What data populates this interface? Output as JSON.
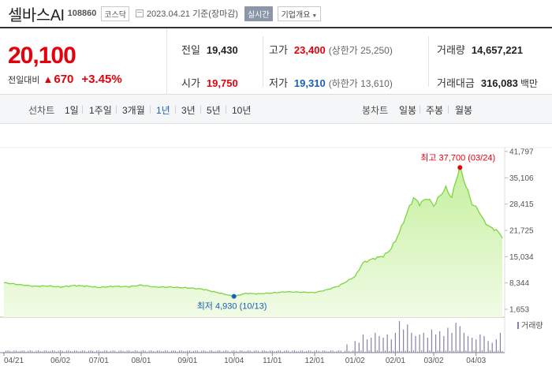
{
  "header": {
    "name": "셀바스AI",
    "code": "108860",
    "market": "코스닥",
    "date": "2023.04.21  기준(장마감)",
    "realtime": "실시간",
    "company_info": "기업개요"
  },
  "summary": {
    "price": "20,100",
    "change_label": "전일대비",
    "change": "670",
    "change_pct": "+3.45%",
    "prev_close_label": "전일",
    "prev_close": "19,430",
    "high_label": "고가",
    "high": "23,400",
    "upper_limit": "(상한가 25,250)",
    "volume_label": "거래량",
    "volume": "14,657,221",
    "open_label": "시가",
    "open": "19,750",
    "low_label": "저가",
    "low": "19,310",
    "lower_limit": "(하한가 13,610)",
    "amount_label": "거래대금",
    "amount": "316,083",
    "amount_unit": "백만"
  },
  "tabs": {
    "line_label": "선차트",
    "periods": [
      "1일",
      "1주일",
      "3개월",
      "1년",
      "3년",
      "5년",
      "10년"
    ],
    "active": "1년",
    "candle_label": "봉차트",
    "candles": [
      "일봉",
      "주봉",
      "월봉"
    ]
  },
  "chart_data": {
    "type": "area",
    "y_ticks": [
      "41,797",
      "35,106",
      "28,415",
      "21,725",
      "15,034",
      "8,344",
      "1,653"
    ],
    "y_tick_values": [
      41797,
      35106,
      28415,
      21725,
      15034,
      8344,
      1653
    ],
    "ylim": [
      1653,
      41797
    ],
    "x_labels": [
      "04/21",
      "06/02",
      "07/01",
      "08/01",
      "09/01",
      "10/04",
      "11/01",
      "12/01",
      "01/02",
      "02/01",
      "03/02",
      "04/03"
    ],
    "x_label_idx": [
      0,
      28,
      47,
      68,
      91,
      114,
      133,
      154,
      174,
      194,
      213,
      234
    ],
    "n": 248,
    "anchors": [
      [
        0,
        8400
      ],
      [
        8,
        7900
      ],
      [
        15,
        7500
      ],
      [
        22,
        7600
      ],
      [
        28,
        7300
      ],
      [
        35,
        7700
      ],
      [
        42,
        7500
      ],
      [
        47,
        7200
      ],
      [
        55,
        7500
      ],
      [
        62,
        7400
      ],
      [
        68,
        7800
      ],
      [
        75,
        7300
      ],
      [
        82,
        7300
      ],
      [
        91,
        7100
      ],
      [
        98,
        6800
      ],
      [
        105,
        6000
      ],
      [
        110,
        5400
      ],
      [
        114,
        4930
      ],
      [
        120,
        5700
      ],
      [
        126,
        5600
      ],
      [
        133,
        5800
      ],
      [
        140,
        6100
      ],
      [
        147,
        6000
      ],
      [
        154,
        5900
      ],
      [
        160,
        6600
      ],
      [
        166,
        7600
      ],
      [
        170,
        8800
      ],
      [
        174,
        10000
      ],
      [
        178,
        13500
      ],
      [
        183,
        14500
      ],
      [
        188,
        15200
      ],
      [
        191,
        16500
      ],
      [
        194,
        19000
      ],
      [
        197,
        22500
      ],
      [
        200,
        26500
      ],
      [
        203,
        30000
      ],
      [
        206,
        28500
      ],
      [
        210,
        30000
      ],
      [
        213,
        28000
      ],
      [
        216,
        30500
      ],
      [
        219,
        32500
      ],
      [
        222,
        30000
      ],
      [
        224,
        34500
      ],
      [
        226,
        37700
      ],
      [
        229,
        33000
      ],
      [
        232,
        28500
      ],
      [
        235,
        27000
      ],
      [
        238,
        24000
      ],
      [
        241,
        22500
      ],
      [
        244,
        21800
      ],
      [
        247,
        20100
      ]
    ],
    "high": {
      "label": "최고",
      "value": "37,700",
      "date": "(03/24)",
      "idx": 226,
      "y": 37700
    },
    "low": {
      "label": "최저",
      "value": "4,930",
      "date": "(10/13)",
      "idx": 114,
      "y": 4930
    },
    "volume_legend": "거래량",
    "volume_spikes": [
      [
        170,
        0.25
      ],
      [
        174,
        0.35
      ],
      [
        176,
        0.3
      ],
      [
        178,
        0.55
      ],
      [
        180,
        0.4
      ],
      [
        182,
        0.45
      ],
      [
        184,
        0.6
      ],
      [
        186,
        0.5
      ],
      [
        188,
        0.45
      ],
      [
        190,
        0.55
      ],
      [
        192,
        0.4
      ],
      [
        194,
        0.6
      ],
      [
        196,
        0.95
      ],
      [
        198,
        0.7
      ],
      [
        200,
        0.85
      ],
      [
        202,
        0.6
      ],
      [
        204,
        0.5
      ],
      [
        206,
        0.55
      ],
      [
        208,
        0.6
      ],
      [
        210,
        0.45
      ],
      [
        212,
        0.7
      ],
      [
        214,
        0.55
      ],
      [
        216,
        0.65
      ],
      [
        218,
        0.5
      ],
      [
        220,
        0.75
      ],
      [
        222,
        0.6
      ],
      [
        224,
        0.9
      ],
      [
        226,
        0.8
      ],
      [
        228,
        0.6
      ],
      [
        230,
        0.5
      ],
      [
        232,
        0.45
      ],
      [
        234,
        0.4
      ],
      [
        236,
        0.55
      ],
      [
        238,
        0.5
      ],
      [
        240,
        0.35
      ],
      [
        242,
        0.3
      ],
      [
        244,
        0.4
      ],
      [
        246,
        0.6
      ]
    ]
  },
  "colors": {
    "up": "#e4000c",
    "down": "#1a5fb4",
    "line": "#7bd63f",
    "fill_top": "#c5f09e",
    "fill_bottom": "#f1fbe6",
    "volume": "#8a7fa8"
  }
}
